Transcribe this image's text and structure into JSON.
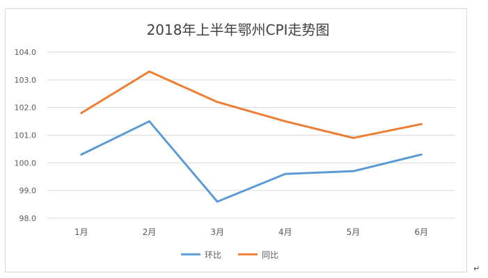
{
  "chart_data": {
    "type": "line",
    "title": "2018年上半年鄂州CPI走势图",
    "categories": [
      "1月",
      "2月",
      "3月",
      "4月",
      "5月",
      "6月"
    ],
    "series": [
      {
        "name": "环比",
        "color": "#5b9bd5",
        "values": [
          100.3,
          101.5,
          98.6,
          99.6,
          99.7,
          100.3
        ]
      },
      {
        "name": "同比",
        "color": "#ed7d31",
        "values": [
          101.8,
          103.3,
          102.2,
          101.5,
          100.9,
          101.4
        ]
      }
    ],
    "y_ticks": [
      "98.0",
      "99.0",
      "100.0",
      "101.0",
      "102.0",
      "103.0",
      "104.0"
    ],
    "ylim": [
      98,
      104
    ],
    "xlabel": "",
    "ylabel": "",
    "grid": true,
    "legend_position": "bottom"
  },
  "page": {
    "return_mark": "↵"
  }
}
